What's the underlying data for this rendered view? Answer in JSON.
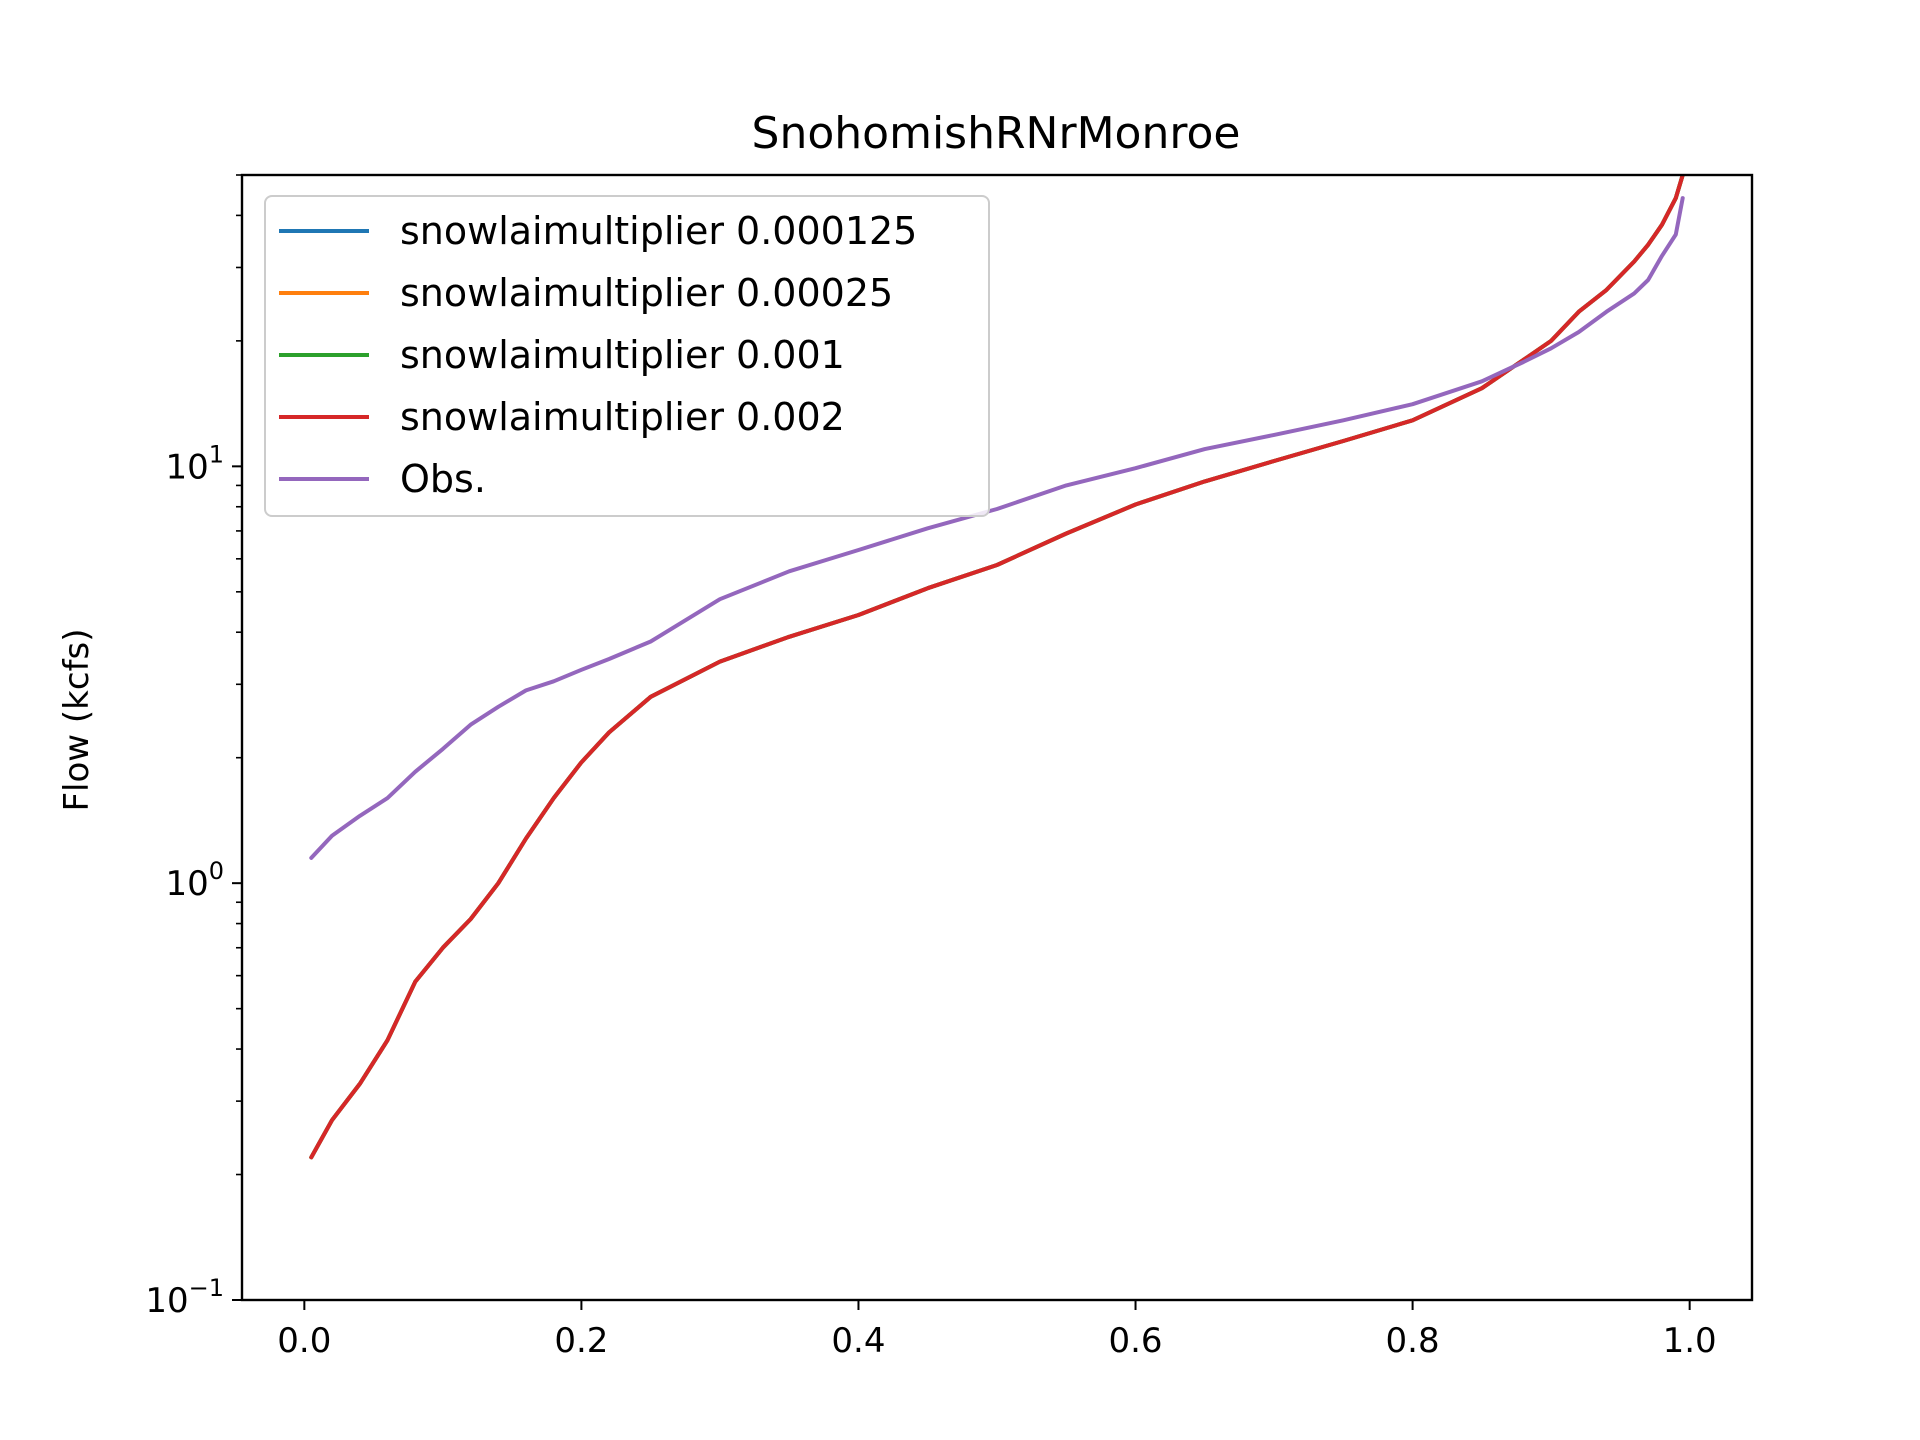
{
  "chart_data": {
    "type": "line",
    "title": "SnohomishRNrMonroe",
    "xlabel": "",
    "ylabel": "Flow (kcfs)",
    "xlim": [
      -0.045,
      1.045
    ],
    "ylim": [
      0.1,
      50
    ],
    "yscale": "log",
    "grid": false,
    "legend_position": "upper-left",
    "x_ticks": [
      {
        "value": 0.0,
        "label": "0.0"
      },
      {
        "value": 0.2,
        "label": "0.2"
      },
      {
        "value": 0.4,
        "label": "0.4"
      },
      {
        "value": 0.6,
        "label": "0.6"
      },
      {
        "value": 0.8,
        "label": "0.8"
      },
      {
        "value": 1.0,
        "label": "1.0"
      }
    ],
    "y_ticks": [
      {
        "value": 0.1,
        "base": "10",
        "exp": "−1"
      },
      {
        "value": 1,
        "base": "10",
        "exp": "0"
      },
      {
        "value": 10,
        "base": "10",
        "exp": "1"
      }
    ],
    "series": [
      {
        "name": "snowlaimultiplier 0.000125",
        "color": "#1f77b4",
        "x": [
          0.005,
          0.02,
          0.04,
          0.06,
          0.08,
          0.1,
          0.12,
          0.14,
          0.16,
          0.18,
          0.2,
          0.22,
          0.25,
          0.3,
          0.35,
          0.4,
          0.45,
          0.5,
          0.55,
          0.6,
          0.65,
          0.7,
          0.75,
          0.8,
          0.85,
          0.88,
          0.9,
          0.92,
          0.94,
          0.96,
          0.97,
          0.98,
          0.99,
          0.995
        ],
        "y": [
          0.22,
          0.27,
          0.33,
          0.42,
          0.58,
          0.7,
          0.82,
          1.0,
          1.28,
          1.6,
          1.95,
          2.3,
          2.8,
          3.4,
          3.9,
          4.4,
          5.1,
          5.8,
          6.9,
          8.1,
          9.2,
          10.3,
          11.5,
          12.9,
          15.4,
          18.0,
          20.0,
          23.5,
          26.5,
          31.0,
          34.0,
          38.0,
          44.0,
          50.0
        ]
      },
      {
        "name": "snowlaimultiplier 0.00025",
        "color": "#ff7f0e",
        "x": [
          0.005,
          0.02,
          0.04,
          0.06,
          0.08,
          0.1,
          0.12,
          0.14,
          0.16,
          0.18,
          0.2,
          0.22,
          0.25,
          0.3,
          0.35,
          0.4,
          0.45,
          0.5,
          0.55,
          0.6,
          0.65,
          0.7,
          0.75,
          0.8,
          0.85,
          0.88,
          0.9,
          0.92,
          0.94,
          0.96,
          0.97,
          0.98,
          0.99,
          0.995
        ],
        "y": [
          0.22,
          0.27,
          0.33,
          0.42,
          0.58,
          0.7,
          0.82,
          1.0,
          1.28,
          1.6,
          1.95,
          2.3,
          2.8,
          3.4,
          3.9,
          4.4,
          5.1,
          5.8,
          6.9,
          8.1,
          9.2,
          10.3,
          11.5,
          12.9,
          15.4,
          18.0,
          20.0,
          23.5,
          26.5,
          31.0,
          34.0,
          38.0,
          44.0,
          50.0
        ]
      },
      {
        "name": "snowlaimultiplier 0.001",
        "color": "#2ca02c",
        "x": [
          0.005,
          0.02,
          0.04,
          0.06,
          0.08,
          0.1,
          0.12,
          0.14,
          0.16,
          0.18,
          0.2,
          0.22,
          0.25,
          0.3,
          0.35,
          0.4,
          0.45,
          0.5,
          0.55,
          0.6,
          0.65,
          0.7,
          0.75,
          0.8,
          0.85,
          0.88,
          0.9,
          0.92,
          0.94,
          0.96,
          0.97,
          0.98,
          0.99,
          0.995
        ],
        "y": [
          0.22,
          0.27,
          0.33,
          0.42,
          0.58,
          0.7,
          0.82,
          1.0,
          1.28,
          1.6,
          1.95,
          2.3,
          2.8,
          3.4,
          3.9,
          4.4,
          5.1,
          5.8,
          6.9,
          8.1,
          9.2,
          10.3,
          11.5,
          12.9,
          15.4,
          18.0,
          20.0,
          23.5,
          26.5,
          31.0,
          34.0,
          38.0,
          44.0,
          50.0
        ]
      },
      {
        "name": "snowlaimultiplier 0.002",
        "color": "#d62728",
        "x": [
          0.005,
          0.02,
          0.04,
          0.06,
          0.08,
          0.1,
          0.12,
          0.14,
          0.16,
          0.18,
          0.2,
          0.22,
          0.25,
          0.3,
          0.35,
          0.4,
          0.45,
          0.5,
          0.55,
          0.6,
          0.65,
          0.7,
          0.75,
          0.8,
          0.85,
          0.88,
          0.9,
          0.92,
          0.94,
          0.96,
          0.97,
          0.98,
          0.99,
          0.995
        ],
        "y": [
          0.22,
          0.27,
          0.33,
          0.42,
          0.58,
          0.7,
          0.82,
          1.0,
          1.28,
          1.6,
          1.95,
          2.3,
          2.8,
          3.4,
          3.9,
          4.4,
          5.1,
          5.8,
          6.9,
          8.1,
          9.2,
          10.3,
          11.5,
          12.9,
          15.4,
          18.0,
          20.0,
          23.5,
          26.5,
          31.0,
          34.0,
          38.0,
          44.0,
          50.0
        ]
      },
      {
        "name": "Obs.",
        "color": "#9467bd",
        "x": [
          0.005,
          0.02,
          0.04,
          0.06,
          0.08,
          0.1,
          0.12,
          0.14,
          0.16,
          0.18,
          0.2,
          0.22,
          0.25,
          0.3,
          0.35,
          0.4,
          0.45,
          0.5,
          0.55,
          0.6,
          0.65,
          0.7,
          0.75,
          0.8,
          0.85,
          0.88,
          0.9,
          0.92,
          0.94,
          0.96,
          0.97,
          0.98,
          0.99,
          0.995
        ],
        "y": [
          1.15,
          1.3,
          1.45,
          1.6,
          1.85,
          2.1,
          2.4,
          2.65,
          2.9,
          3.05,
          3.25,
          3.45,
          3.8,
          4.8,
          5.6,
          6.3,
          7.1,
          7.9,
          9.0,
          9.9,
          11.0,
          11.9,
          12.9,
          14.1,
          16.0,
          17.8,
          19.2,
          21.0,
          23.5,
          26.0,
          28.0,
          32.0,
          36.0,
          44.0
        ]
      }
    ]
  }
}
